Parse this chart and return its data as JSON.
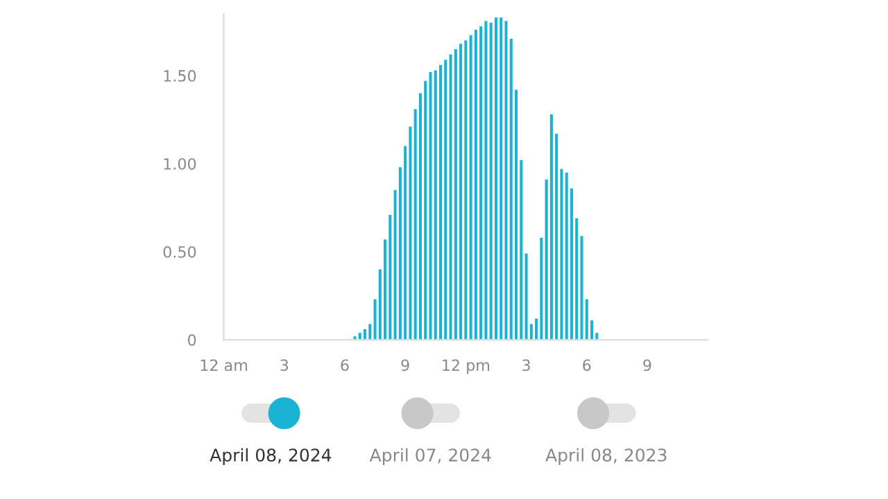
{
  "chart_data": {
    "type": "bar",
    "color": "#1ab3d3",
    "x": [
      "2024-04-08T06:30",
      "2024-04-08T06:45",
      "2024-04-08T07:00",
      "2024-04-08T07:15",
      "2024-04-08T07:30",
      "2024-04-08T07:45",
      "2024-04-08T08:00",
      "2024-04-08T08:15",
      "2024-04-08T08:30",
      "2024-04-08T08:45",
      "2024-04-08T09:00",
      "2024-04-08T09:15",
      "2024-04-08T09:30",
      "2024-04-08T09:45",
      "2024-04-08T10:00",
      "2024-04-08T10:15",
      "2024-04-08T10:30",
      "2024-04-08T10:45",
      "2024-04-08T11:00",
      "2024-04-08T11:15",
      "2024-04-08T11:30",
      "2024-04-08T11:45",
      "2024-04-08T12:00",
      "2024-04-08T12:15",
      "2024-04-08T12:30",
      "2024-04-08T12:45",
      "2024-04-08T13:00",
      "2024-04-08T13:15",
      "2024-04-08T13:30",
      "2024-04-08T13:45",
      "2024-04-08T14:00",
      "2024-04-08T14:15",
      "2024-04-08T14:30",
      "2024-04-08T14:45",
      "2024-04-08T15:00",
      "2024-04-08T15:15",
      "2024-04-08T15:30",
      "2024-04-08T15:45",
      "2024-04-08T16:00",
      "2024-04-08T16:15",
      "2024-04-08T16:30",
      "2024-04-08T16:45",
      "2024-04-08T17:00",
      "2024-04-08T17:15",
      "2024-04-08T17:30",
      "2024-04-08T17:45",
      "2024-04-08T18:00",
      "2024-04-08T18:15",
      "2024-04-08T18:30"
    ],
    "values": [
      0.02,
      0.04,
      0.06,
      0.09,
      0.23,
      0.4,
      0.57,
      0.71,
      0.85,
      0.98,
      1.1,
      1.21,
      1.31,
      1.4,
      1.47,
      1.52,
      1.53,
      1.56,
      1.59,
      1.62,
      1.65,
      1.68,
      1.7,
      1.73,
      1.76,
      1.78,
      1.81,
      1.8,
      1.83,
      1.83,
      1.81,
      1.71,
      1.42,
      1.02,
      0.49,
      0.09,
      0.12,
      0.58,
      0.91,
      1.28,
      1.17,
      0.97,
      0.95,
      0.86,
      0.69,
      0.59,
      0.23,
      0.11,
      0.04
    ],
    "xlim": [
      "2024-04-08T00:00",
      "2024-04-09T00:00"
    ],
    "xticks": [
      {
        "value": "2024-04-08T00:00",
        "label": "12 am"
      },
      {
        "value": "2024-04-08T03:00",
        "label": "3"
      },
      {
        "value": "2024-04-08T06:00",
        "label": "6"
      },
      {
        "value": "2024-04-08T09:00",
        "label": "9"
      },
      {
        "value": "2024-04-08T12:00",
        "label": "12 pm"
      },
      {
        "value": "2024-04-08T15:00",
        "label": "3"
      },
      {
        "value": "2024-04-08T18:00",
        "label": "6"
      },
      {
        "value": "2024-04-08T21:00",
        "label": "9"
      }
    ],
    "ylim": [
      0,
      1.85
    ],
    "yticks": [
      0,
      {
        "value": 0.5,
        "label": "0.50"
      },
      {
        "value": 1.0,
        "label": "1.00"
      },
      {
        "value": 1.5,
        "label": "1.50"
      }
    ],
    "grid": false,
    "annotations": [
      "April 08, 2024",
      "April 07, 2024",
      "April 08, 2023"
    ]
  }
}
